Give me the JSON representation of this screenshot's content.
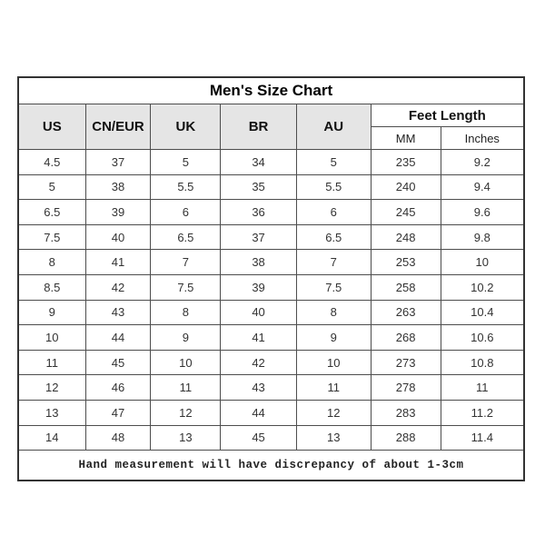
{
  "colors": {
    "page_background": "#ffffff",
    "header_background": "#e5e5e5",
    "inner_border": "#4d4d4d",
    "outer_border": "#333333",
    "title_text": "#000000",
    "cell_text": "#333333"
  },
  "chart_data": {
    "type": "table",
    "title": "Men's Size Chart",
    "columns": [
      "US",
      "CN/EUR",
      "UK",
      "BR",
      "AU"
    ],
    "feet_length_label": "Feet Length",
    "sub_columns": [
      "MM",
      "Inches"
    ],
    "column_keys_full": [
      "US",
      "CN/EUR",
      "UK",
      "BR",
      "AU",
      "Feet Length (MM)",
      "Feet Length (Inches)"
    ],
    "rows": [
      [
        "4.5",
        "37",
        "5",
        "34",
        "5",
        "235",
        "9.2"
      ],
      [
        "5",
        "38",
        "5.5",
        "35",
        "5.5",
        "240",
        "9.4"
      ],
      [
        "6.5",
        "39",
        "6",
        "36",
        "6",
        "245",
        "9.6"
      ],
      [
        "7.5",
        "40",
        "6.5",
        "37",
        "6.5",
        "248",
        "9.8"
      ],
      [
        "8",
        "41",
        "7",
        "38",
        "7",
        "253",
        "10"
      ],
      [
        "8.5",
        "42",
        "7.5",
        "39",
        "7.5",
        "258",
        "10.2"
      ],
      [
        "9",
        "43",
        "8",
        "40",
        "8",
        "263",
        "10.4"
      ],
      [
        "10",
        "44",
        "9",
        "41",
        "9",
        "268",
        "10.6"
      ],
      [
        "11",
        "45",
        "10",
        "42",
        "10",
        "273",
        "10.8"
      ],
      [
        "12",
        "46",
        "11",
        "43",
        "11",
        "278",
        "11"
      ],
      [
        "13",
        "47",
        "12",
        "44",
        "12",
        "283",
        "11.2"
      ],
      [
        "14",
        "48",
        "13",
        "45",
        "13",
        "288",
        "11.4"
      ]
    ],
    "footnote": "Hand measurement will have discrepancy of about 1-3cm",
    "layout": {
      "grid": true,
      "header_rows": 2,
      "title_row": true,
      "footnote_row": true
    }
  }
}
